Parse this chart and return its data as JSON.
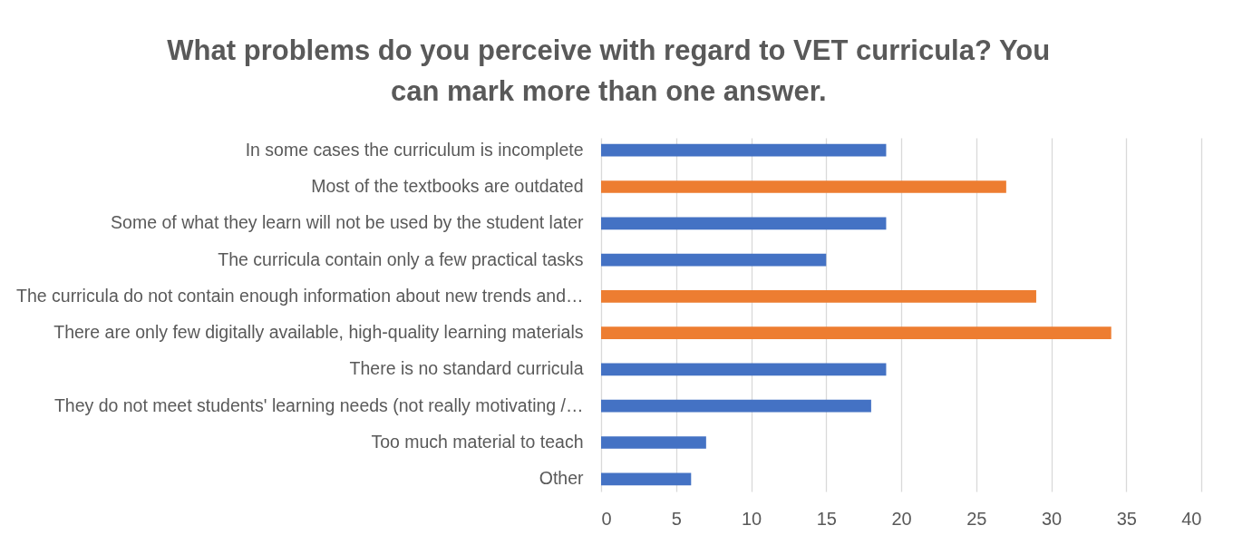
{
  "chart_data": {
    "type": "bar",
    "orientation": "horizontal",
    "title": "What problems do you perceive with regard to VET curricula? You can mark more than one answer.",
    "categories": [
      "In some cases the curriculum is incomplete",
      "Most of the textbooks are outdated",
      "Some of what they learn will not be used by the student later",
      "The curricula contain only a few practical tasks",
      "The curricula do not contain enough information about new trends and…",
      "There are only few digitally available, high-quality learning materials",
      "There is no standard curricula",
      "They do not meet students' learning needs (not really motivating /…",
      "Too much material to teach",
      "Other"
    ],
    "values": [
      19,
      27,
      19,
      15,
      29,
      34,
      19,
      18,
      7,
      6
    ],
    "colors": [
      "#4472c4",
      "#ed7d31",
      "#4472c4",
      "#4472c4",
      "#ed7d31",
      "#ed7d31",
      "#4472c4",
      "#4472c4",
      "#4472c4",
      "#4472c4"
    ],
    "xlim": [
      0,
      40
    ],
    "xticks": [
      0,
      5,
      10,
      15,
      20,
      25,
      30,
      35,
      40
    ],
    "grid": "x"
  }
}
